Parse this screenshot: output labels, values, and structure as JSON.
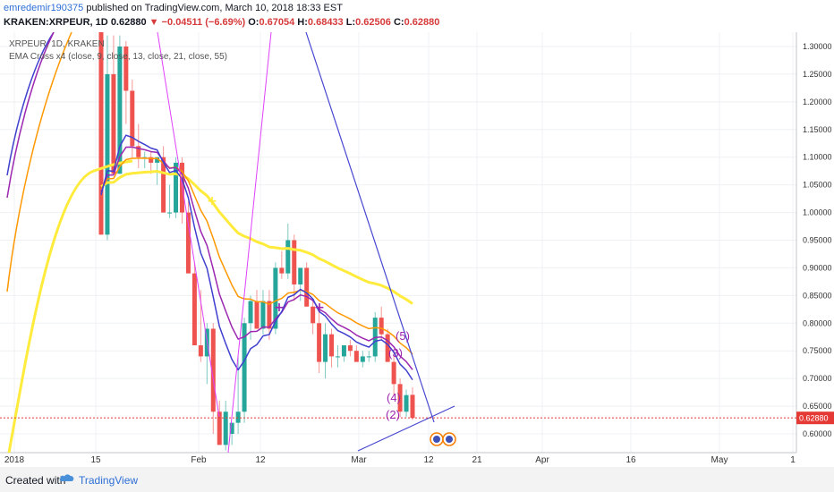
{
  "header": {
    "user": "emredemir190375",
    "published": "published on TradingView.com, March 10, 2018 18:33 EST",
    "symbol": "KRAKEN:XRPEUR, 1D",
    "last": "0.62880",
    "change": "−0.04511 (−6.69%)",
    "o_label": "O:",
    "o": "0.67054",
    "h_label": "H:",
    "h": "0.68433",
    "l_label": "L:",
    "l": "0.62506",
    "c_label": "C:",
    "c": "0.62880"
  },
  "legend": {
    "symbol": "XRPEUR, 1D, KRAKEN",
    "indicator": "EMA Cross x4 (close, 9, close, 13, close, 21, close, 55)"
  },
  "footer": {
    "created": "Created with",
    "brand": "TradingView"
  },
  "colors": {
    "up": "#26a69a",
    "down": "#ef5350",
    "ema9": "#3f3fd0",
    "ema13": "#9c27b0",
    "ema21": "#ff9800",
    "ema55": "#ffeb3b",
    "trend": "#4747d1",
    "magenta": "#e040fb",
    "wave": "#9c27b0",
    "price_line": "#e53935"
  },
  "chart_data": {
    "type": "candlestick",
    "y_min": 0.57,
    "y_max": 1.32,
    "y_ticks": [
      "1.30000",
      "1.25000",
      "1.20000",
      "1.15000",
      "1.10000",
      "1.05000",
      "1.00000",
      "0.95000",
      "0.90000",
      "0.85000",
      "0.80000",
      "0.75000",
      "0.70000",
      "0.65000",
      "0.60000"
    ],
    "x_ticks": [
      "2018",
      "15",
      "Feb",
      "12",
      "Mar",
      "12",
      "21",
      "Apr",
      "16",
      "May",
      "1"
    ],
    "last_price_label": "0.62880",
    "candles": [
      {
        "o": 1.33,
        "h": 1.4,
        "l": 0.96,
        "c": 0.96
      },
      {
        "o": 0.96,
        "h": 1.32,
        "l": 0.95,
        "c": 1.25
      },
      {
        "o": 1.25,
        "h": 1.32,
        "l": 1.07,
        "c": 1.07
      },
      {
        "o": 1.07,
        "h": 1.32,
        "l": 1.07,
        "c": 1.3
      },
      {
        "o": 1.3,
        "h": 1.31,
        "l": 1.16,
        "c": 1.22
      },
      {
        "o": 1.22,
        "h": 1.24,
        "l": 1.1,
        "c": 1.12
      },
      {
        "o": 1.12,
        "h": 1.16,
        "l": 1.08,
        "c": 1.1
      },
      {
        "o": 1.1,
        "h": 1.11,
        "l": 1.08,
        "c": 1.1
      },
      {
        "o": 1.1,
        "h": 1.11,
        "l": 1.07,
        "c": 1.09
      },
      {
        "o": 1.09,
        "h": 1.1,
        "l": 1.05,
        "c": 1.1
      },
      {
        "o": 1.1,
        "h": 1.12,
        "l": 1.0,
        "c": 1.0
      },
      {
        "o": 1.0,
        "h": 1.05,
        "l": 0.99,
        "c": 1.0
      },
      {
        "o": 1.0,
        "h": 1.1,
        "l": 0.99,
        "c": 1.09
      },
      {
        "o": 1.09,
        "h": 1.1,
        "l": 0.98,
        "c": 1.0
      },
      {
        "o": 1.0,
        "h": 1.02,
        "l": 0.89,
        "c": 0.89
      },
      {
        "o": 0.89,
        "h": 0.91,
        "l": 0.76,
        "c": 0.76
      },
      {
        "o": 0.76,
        "h": 0.86,
        "l": 0.73,
        "c": 0.74
      },
      {
        "o": 0.74,
        "h": 0.8,
        "l": 0.69,
        "c": 0.79
      },
      {
        "o": 0.79,
        "h": 0.8,
        "l": 0.6,
        "c": 0.64
      },
      {
        "o": 0.64,
        "h": 0.66,
        "l": 0.58,
        "c": 0.58
      },
      {
        "o": 0.58,
        "h": 0.66,
        "l": 0.57,
        "c": 0.64
      },
      {
        "o": 0.6,
        "h": 0.62,
        "l": 0.58,
        "c": 0.62
      },
      {
        "o": 0.62,
        "h": 0.74,
        "l": 0.6,
        "c": 0.64
      },
      {
        "o": 0.64,
        "h": 0.81,
        "l": 0.62,
        "c": 0.8
      },
      {
        "o": 0.8,
        "h": 0.85,
        "l": 0.77,
        "c": 0.84
      },
      {
        "o": 0.84,
        "h": 0.86,
        "l": 0.79,
        "c": 0.79
      },
      {
        "o": 0.79,
        "h": 0.86,
        "l": 0.78,
        "c": 0.84
      },
      {
        "o": 0.84,
        "h": 0.86,
        "l": 0.77,
        "c": 0.79
      },
      {
        "o": 0.79,
        "h": 0.91,
        "l": 0.78,
        "c": 0.9
      },
      {
        "o": 0.9,
        "h": 0.93,
        "l": 0.88,
        "c": 0.89
      },
      {
        "o": 0.89,
        "h": 0.98,
        "l": 0.88,
        "c": 0.95
      },
      {
        "o": 0.95,
        "h": 0.96,
        "l": 0.84,
        "c": 0.87
      },
      {
        "o": 0.87,
        "h": 0.9,
        "l": 0.84,
        "c": 0.9
      },
      {
        "o": 0.9,
        "h": 0.91,
        "l": 0.83,
        "c": 0.83
      },
      {
        "o": 0.83,
        "h": 0.84,
        "l": 0.78,
        "c": 0.8
      },
      {
        "o": 0.8,
        "h": 0.82,
        "l": 0.71,
        "c": 0.73
      },
      {
        "o": 0.73,
        "h": 0.8,
        "l": 0.7,
        "c": 0.78
      },
      {
        "o": 0.78,
        "h": 0.79,
        "l": 0.72,
        "c": 0.74
      },
      {
        "o": 0.74,
        "h": 0.76,
        "l": 0.72,
        "c": 0.74
      },
      {
        "o": 0.74,
        "h": 0.76,
        "l": 0.73,
        "c": 0.76
      },
      {
        "o": 0.76,
        "h": 0.77,
        "l": 0.74,
        "c": 0.75
      },
      {
        "o": 0.75,
        "h": 0.76,
        "l": 0.73,
        "c": 0.73
      },
      {
        "o": 0.73,
        "h": 0.75,
        "l": 0.72,
        "c": 0.74
      },
      {
        "o": 0.74,
        "h": 0.75,
        "l": 0.73,
        "c": 0.74
      },
      {
        "o": 0.74,
        "h": 0.82,
        "l": 0.73,
        "c": 0.81
      },
      {
        "o": 0.81,
        "h": 0.83,
        "l": 0.77,
        "c": 0.78
      },
      {
        "o": 0.78,
        "h": 0.79,
        "l": 0.73,
        "c": 0.73
      },
      {
        "o": 0.73,
        "h": 0.75,
        "l": 0.67,
        "c": 0.69
      },
      {
        "o": 0.69,
        "h": 0.7,
        "l": 0.63,
        "c": 0.64
      },
      {
        "o": 0.64,
        "h": 0.68,
        "l": 0.63,
        "c": 0.67
      },
      {
        "o": 0.67054,
        "h": 0.68433,
        "l": 0.62506,
        "c": 0.6288
      }
    ],
    "wave_labels": [
      "(5)",
      "(3)",
      "(4)",
      "(2)"
    ]
  }
}
